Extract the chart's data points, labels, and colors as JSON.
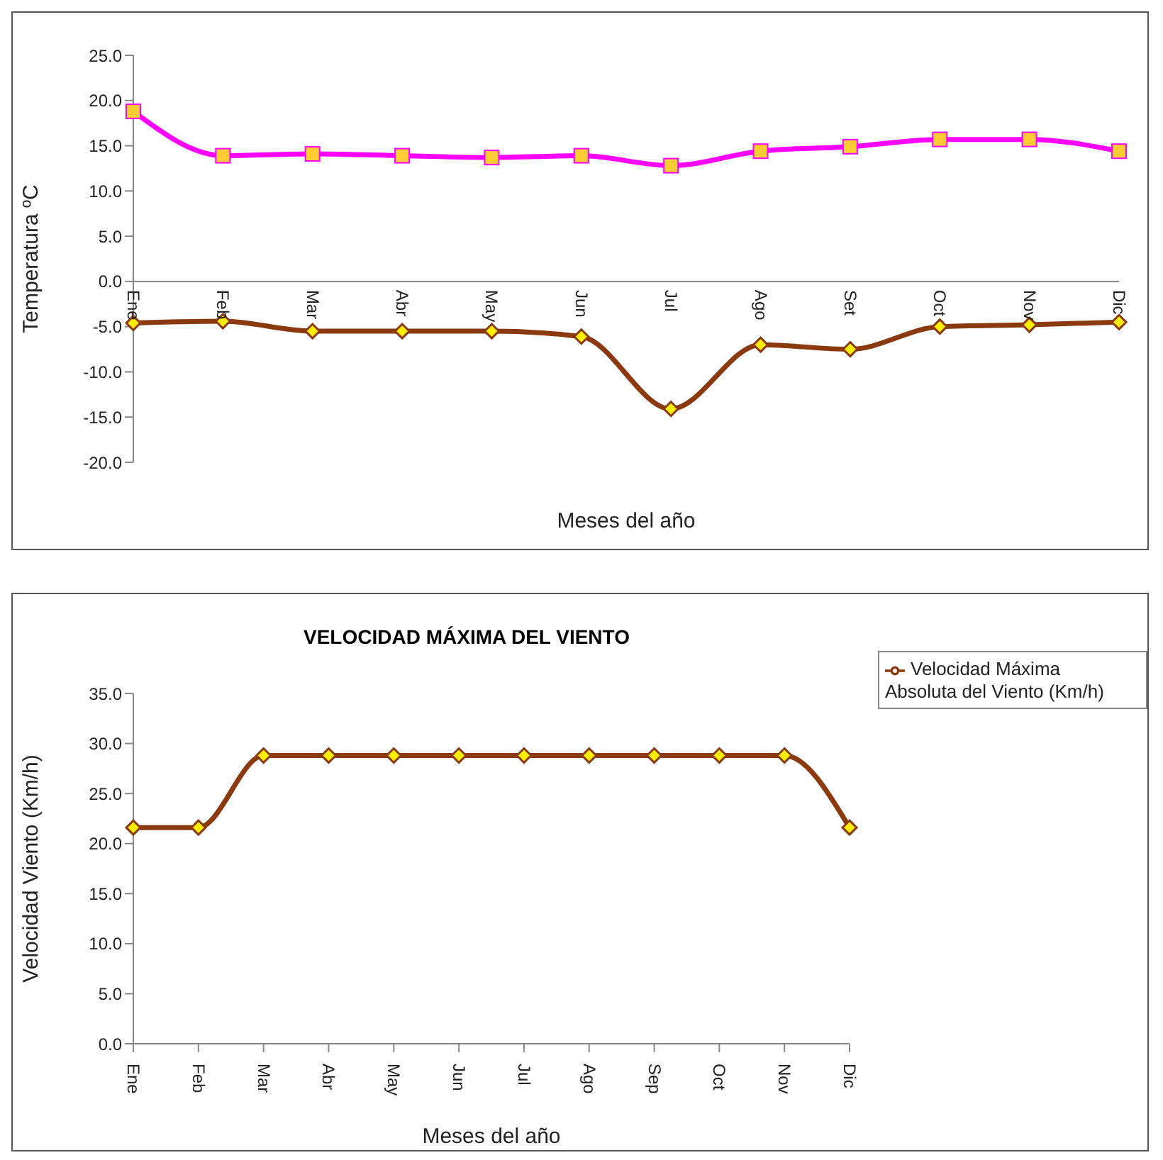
{
  "chart_data": [
    {
      "type": "line",
      "xlabel": "Meses del año",
      "ylabel": "Temperatura ºC",
      "categories": [
        "Ene",
        "Feb",
        "Mar",
        "Abr",
        "May",
        "Jun",
        "Jul",
        "Ago",
        "Set",
        "Oct",
        "Nov",
        "Dic"
      ],
      "series": [
        {
          "color": "#ff00ff",
          "marker": "square",
          "values": [
            18.8,
            13.9,
            14.1,
            13.9,
            13.7,
            13.9,
            12.8,
            14.4,
            14.9,
            15.7,
            15.7,
            14.4
          ]
        },
        {
          "color": "#8b3a0f",
          "marker": "diamond",
          "values": [
            -4.6,
            -4.4,
            -5.5,
            -5.5,
            -5.5,
            -6.1,
            -14.1,
            -7.0,
            -7.5,
            -5.0,
            -4.8,
            -4.5
          ]
        }
      ],
      "ylim": [
        -20,
        25
      ],
      "yticks": [
        {
          "value": -20,
          "label": "-20.0"
        },
        {
          "value": -15,
          "label": "-15.0"
        },
        {
          "value": -10,
          "label": "-10.0"
        },
        {
          "value": -5,
          "label": "-5.0"
        },
        {
          "value": 0,
          "label": "0.0"
        },
        {
          "value": 5,
          "label": "5.0"
        },
        {
          "value": 10,
          "label": "10.0"
        },
        {
          "value": 15,
          "label": "15.0"
        },
        {
          "value": 20,
          "label": "20.0"
        },
        {
          "value": 25,
          "label": "25.0"
        }
      ],
      "grid": false,
      "legend": false
    },
    {
      "type": "line",
      "title": "VELOCIDAD MÁXIMA DEL VIENTO",
      "xlabel": "Meses del año",
      "ylabel": "Velocidad Viento (Km/h)",
      "categories": [
        "Ene",
        "Feb",
        "Mar",
        "Abr",
        "May",
        "Jun",
        "Jul",
        "Ago",
        "Sep",
        "Oct",
        "Nov",
        "Dic"
      ],
      "series": [
        {
          "name": "Velocidad Máxima Absoluta del Viento (Km/h)",
          "color": "#8b3a0f",
          "marker": "diamond",
          "values": [
            21.6,
            21.6,
            28.8,
            28.8,
            28.8,
            28.8,
            28.8,
            28.8,
            28.8,
            28.8,
            28.8,
            21.6
          ]
        }
      ],
      "ylim": [
        0,
        35
      ],
      "yticks": [
        {
          "value": 0,
          "label": "0.0"
        },
        {
          "value": 5,
          "label": "5.0"
        },
        {
          "value": 10,
          "label": "10.0"
        },
        {
          "value": 15,
          "label": "15.0"
        },
        {
          "value": 20,
          "label": "20.0"
        },
        {
          "value": 25,
          "label": "25.0"
        },
        {
          "value": 30,
          "label": "30.0"
        },
        {
          "value": 35,
          "label": "35.0"
        }
      ],
      "grid": false,
      "legend": "top right"
    }
  ]
}
